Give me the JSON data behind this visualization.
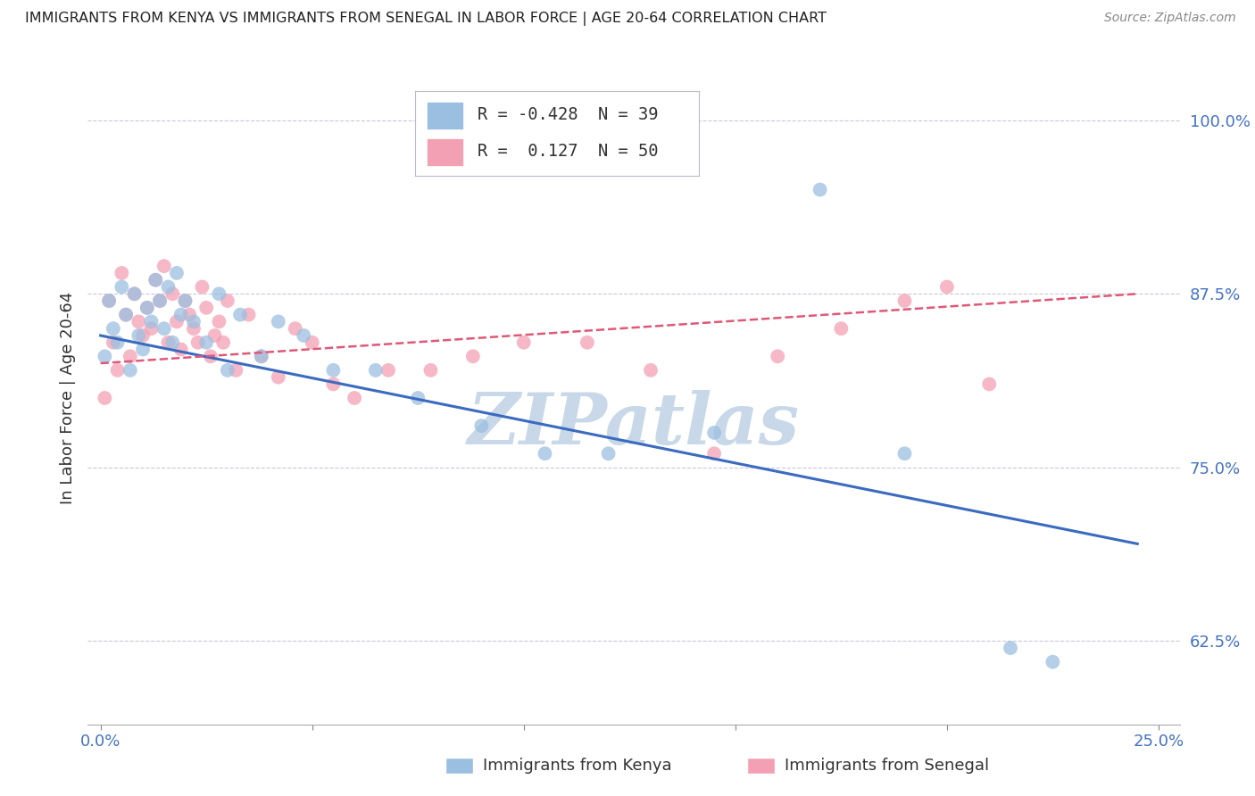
{
  "title": "IMMIGRANTS FROM KENYA VS IMMIGRANTS FROM SENEGAL IN LABOR FORCE | AGE 20-64 CORRELATION CHART",
  "source": "Source: ZipAtlas.com",
  "xlabel_bottom": [
    "Immigrants from Kenya",
    "Immigrants from Senegal"
  ],
  "ylabel": "In Labor Force | Age 20-64",
  "watermark": "ZIPatlas",
  "xlim": [
    -0.003,
    0.255
  ],
  "ylim": [
    0.565,
    1.035
  ],
  "yticks": [
    0.625,
    0.75,
    0.875,
    1.0
  ],
  "ytick_labels": [
    "62.5%",
    "75.0%",
    "87.5%",
    "100.0%"
  ],
  "xtick_positions": [
    0.0,
    0.05,
    0.1,
    0.15,
    0.2,
    0.25
  ],
  "xtick_labels": [
    "0.0%",
    "",
    "",
    "",
    "",
    "25.0%"
  ],
  "kenya_R": -0.428,
  "kenya_N": 39,
  "senegal_R": 0.127,
  "senegal_N": 50,
  "kenya_color": "#9bbfe0",
  "senegal_color": "#f4a0b4",
  "kenya_line_color": "#3b6bbf",
  "senegal_line_color": "#e05878",
  "grid_color": "#c8c8d8",
  "title_color": "#222222",
  "axis_label_color": "#333333",
  "tick_color": "#4472c4",
  "watermark_color": "#c8d8e8",
  "kenya_scatter_x": [
    0.001,
    0.002,
    0.003,
    0.004,
    0.005,
    0.006,
    0.007,
    0.008,
    0.009,
    0.01,
    0.011,
    0.012,
    0.013,
    0.014,
    0.015,
    0.016,
    0.017,
    0.018,
    0.019,
    0.02,
    0.022,
    0.025,
    0.028,
    0.03,
    0.033,
    0.038,
    0.042,
    0.048,
    0.055,
    0.065,
    0.075,
    0.09,
    0.105,
    0.12,
    0.145,
    0.17,
    0.19,
    0.215,
    0.225
  ],
  "kenya_scatter_y": [
    0.83,
    0.87,
    0.85,
    0.84,
    0.88,
    0.86,
    0.82,
    0.875,
    0.845,
    0.835,
    0.865,
    0.855,
    0.885,
    0.87,
    0.85,
    0.88,
    0.84,
    0.89,
    0.86,
    0.87,
    0.855,
    0.84,
    0.875,
    0.82,
    0.86,
    0.83,
    0.855,
    0.845,
    0.82,
    0.82,
    0.8,
    0.78,
    0.76,
    0.76,
    0.775,
    0.95,
    0.76,
    0.62,
    0.61
  ],
  "senegal_scatter_x": [
    0.001,
    0.002,
    0.003,
    0.004,
    0.005,
    0.006,
    0.007,
    0.008,
    0.009,
    0.01,
    0.011,
    0.012,
    0.013,
    0.014,
    0.015,
    0.016,
    0.017,
    0.018,
    0.019,
    0.02,
    0.021,
    0.022,
    0.023,
    0.024,
    0.025,
    0.026,
    0.027,
    0.028,
    0.029,
    0.03,
    0.032,
    0.035,
    0.038,
    0.042,
    0.046,
    0.05,
    0.055,
    0.06,
    0.068,
    0.078,
    0.088,
    0.1,
    0.115,
    0.13,
    0.145,
    0.16,
    0.175,
    0.19,
    0.2,
    0.21
  ],
  "senegal_scatter_y": [
    0.8,
    0.87,
    0.84,
    0.82,
    0.89,
    0.86,
    0.83,
    0.875,
    0.855,
    0.845,
    0.865,
    0.85,
    0.885,
    0.87,
    0.895,
    0.84,
    0.875,
    0.855,
    0.835,
    0.87,
    0.86,
    0.85,
    0.84,
    0.88,
    0.865,
    0.83,
    0.845,
    0.855,
    0.84,
    0.87,
    0.82,
    0.86,
    0.83,
    0.815,
    0.85,
    0.84,
    0.81,
    0.8,
    0.82,
    0.82,
    0.83,
    0.84,
    0.84,
    0.82,
    0.76,
    0.83,
    0.85,
    0.87,
    0.88,
    0.81
  ],
  "kenya_line_x": [
    0.0,
    0.245
  ],
  "kenya_line_y": [
    0.845,
    0.695
  ],
  "senegal_line_x": [
    0.0,
    0.245
  ],
  "senegal_line_y": [
    0.825,
    0.875
  ]
}
